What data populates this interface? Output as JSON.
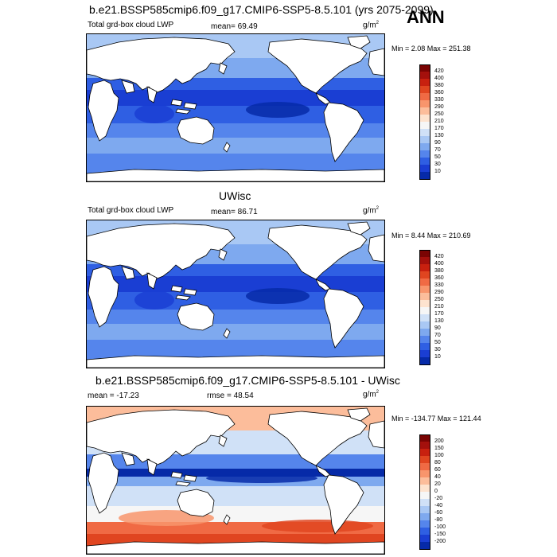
{
  "season": "ANN",
  "panels": [
    {
      "title": "b.e21.BSSP585cmip6.f09_g17.CMIP6-SSP5-8.5.101 (yrs 2075-2099)",
      "left_label": "Total grd-box cloud LWP",
      "center_label": "mean=  69.49",
      "units": "g/m",
      "units_sup": "2",
      "stats": "Min =   2.08 Max = 251.38",
      "scale": "abs",
      "mean": 69.49
    },
    {
      "title": "UWisc",
      "left_label": "Total grd-box cloud LWP",
      "center_label": "mean=  86.71",
      "units": "g/m",
      "units_sup": "2",
      "stats": "Min =   8.44 Max = 210.69",
      "scale": "abs",
      "mean": 86.71
    },
    {
      "title": "b.e21.BSSP585cmip6.f09_g17.CMIP6-SSP5-8.5.101 - UWisc",
      "left_label": "mean = -17.23",
      "center_label": "rmse =  48.54",
      "units": "g/m",
      "units_sup": "2",
      "stats": "Min = -134.77 Max = 121.44",
      "scale": "diff",
      "mean": -17.23
    }
  ],
  "colorbars": {
    "abs": {
      "labels": [
        "420",
        "400",
        "380",
        "360",
        "330",
        "290",
        "250",
        "210",
        "170",
        "130",
        "90",
        "70",
        "50",
        "30",
        "10"
      ],
      "colors": [
        "#7a0403",
        "#a4100c",
        "#c8200f",
        "#e04520",
        "#f06a44",
        "#f8956c",
        "#fcbd9b",
        "#fde3cf",
        "#f6f6f6",
        "#d0e1f7",
        "#a9c8f4",
        "#7ea9ef",
        "#5585ec",
        "#2f5fe3",
        "#1a3ed3",
        "#062aa8"
      ]
    },
    "diff": {
      "labels": [
        "200",
        "150",
        "100",
        "80",
        "60",
        "40",
        "20",
        "0",
        "-20",
        "-40",
        "-60",
        "-80",
        "-100",
        "-150",
        "-200"
      ],
      "colors": [
        "#7a0403",
        "#a4100c",
        "#c8200f",
        "#e04520",
        "#f06a44",
        "#f8956c",
        "#fcbd9b",
        "#fde3cf",
        "#f6f6f6",
        "#d0e1f7",
        "#a9c8f4",
        "#7ea9ef",
        "#5585ec",
        "#2f5fe3",
        "#1a3ed3",
        "#062aa8"
      ]
    }
  }
}
